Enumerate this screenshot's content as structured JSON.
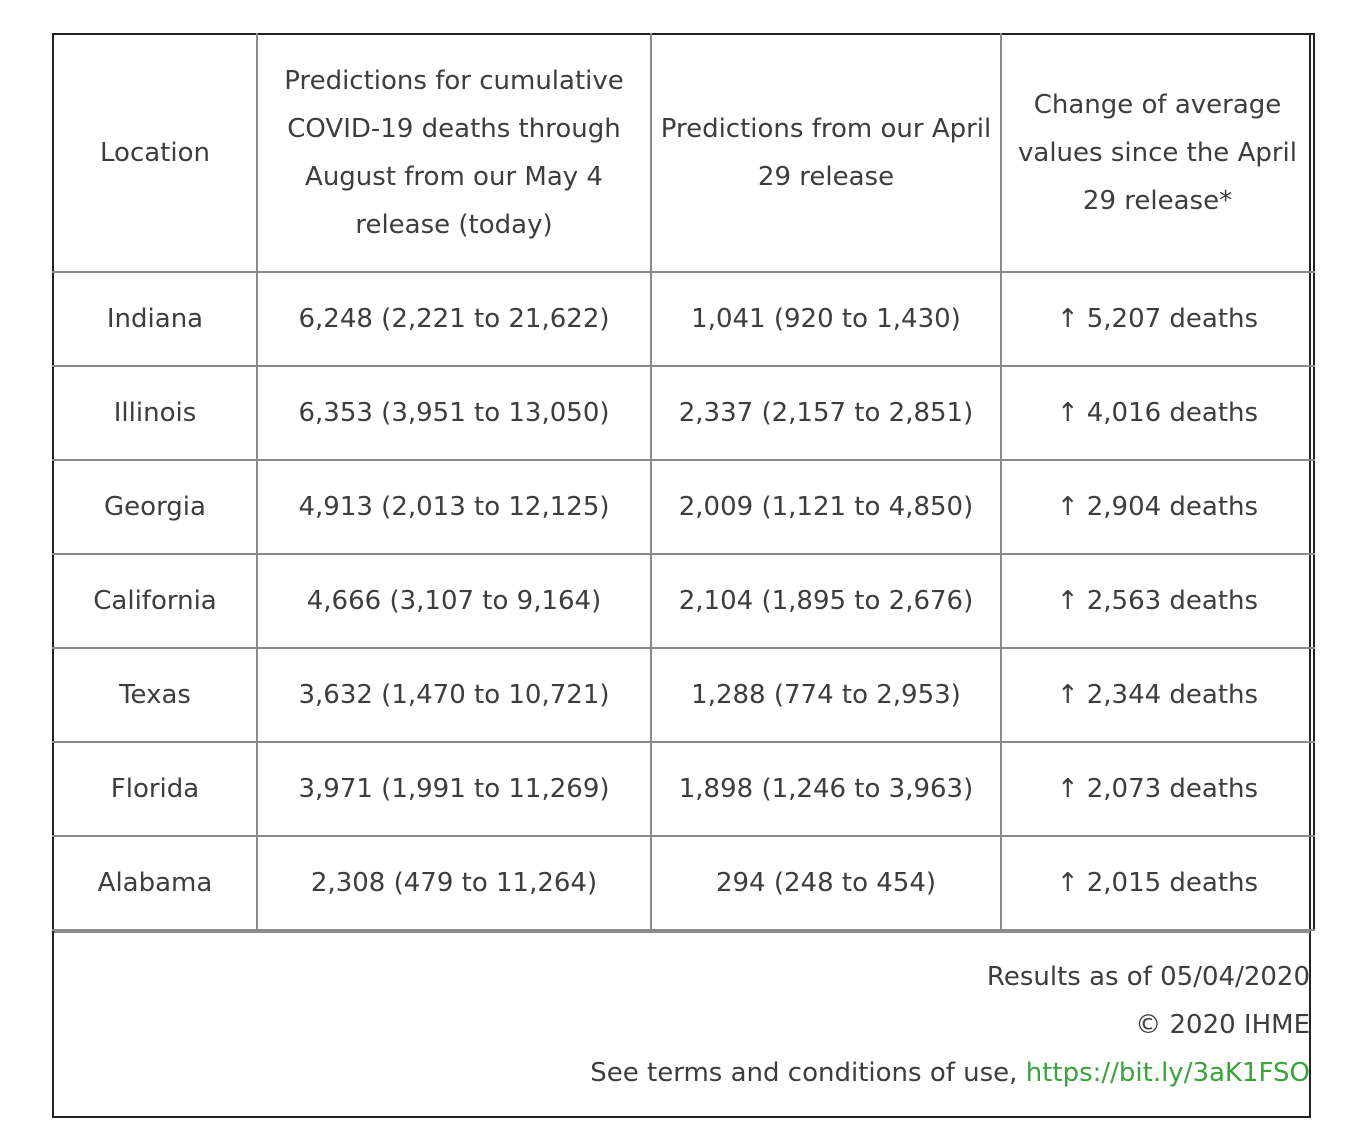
{
  "table": {
    "headers": [
      "Location",
      "Predictions for cumulative COVID-19 deaths through August from our May 4 release (today)",
      "Predictions from our April 29 release",
      "Change of average values since the April 29 release*"
    ],
    "arrow_icon": "↑",
    "rows": [
      [
        "Indiana",
        "6,248 (2,221 to 21,622)",
        "1,041 (920 to 1,430)",
        "5,207 deaths"
      ],
      [
        "Illinois",
        "6,353 (3,951 to 13,050)",
        "2,337 (2,157 to 2,851)",
        "4,016 deaths"
      ],
      [
        "Georgia",
        "4,913 (2,013 to 12,125)",
        "2,009 (1,121 to 4,850)",
        "2,904 deaths"
      ],
      [
        "California",
        "4,666 (3,107 to 9,164)",
        "2,104 (1,895 to 2,676)",
        "2,563 deaths"
      ],
      [
        "Texas",
        "3,632 (1,470 to 10,721)",
        "1,288 (774 to 2,953)",
        "2,344 deaths"
      ],
      [
        "Florida",
        "3,971 (1,991 to 11,269)",
        "1,898 (1,246 to 3,963)",
        "2,073 deaths"
      ],
      [
        "Alabama",
        "2,308 (479 to 11,264)",
        "294 (248 to 454)",
        "2,015 deaths"
      ]
    ]
  },
  "footer": {
    "results_as_of": "Results as of 05/04/2020",
    "copyright": "© 2020 IHME",
    "terms_text": "See terms and conditions of use, ",
    "link_text": "https://bit.ly/3aK1FSO"
  },
  "colors": {
    "link": "#3aa33a",
    "text": "#3d3d3d",
    "grid": "#8a8a8a",
    "frame": "#222222"
  }
}
